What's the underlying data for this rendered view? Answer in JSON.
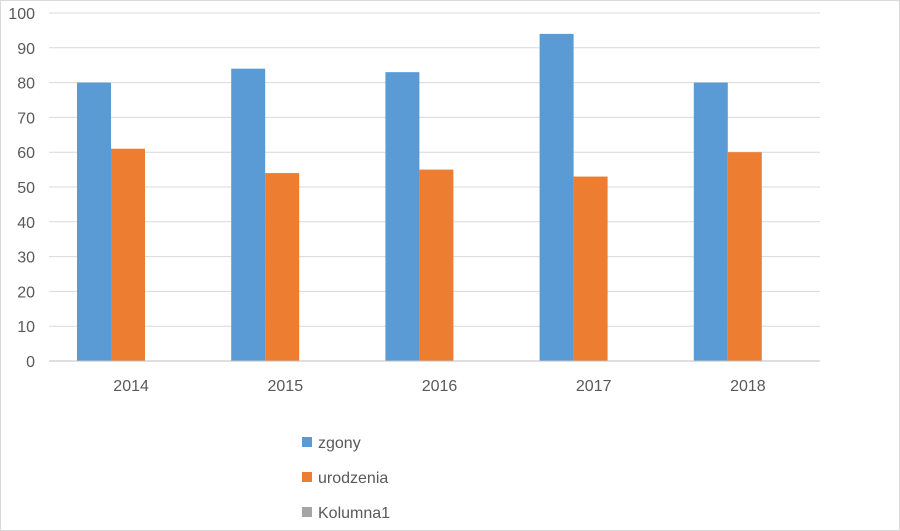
{
  "chart_data": {
    "type": "bar",
    "title": "",
    "xlabel": "",
    "ylabel": "",
    "categories": [
      "2014",
      "2015",
      "2016",
      "2017",
      "2018"
    ],
    "series": [
      {
        "name": "zgony",
        "color": "#5b9bd5",
        "values": [
          80,
          84,
          83,
          94,
          80
        ]
      },
      {
        "name": "urodzenia",
        "color": "#ed7d31",
        "values": [
          61,
          54,
          55,
          53,
          60
        ]
      },
      {
        "name": "Kolumna1",
        "color": "#a5a5a5",
        "values": [
          null,
          null,
          null,
          null,
          null
        ]
      }
    ],
    "ylim": [
      0,
      100
    ],
    "yticks": [
      0,
      10,
      20,
      30,
      40,
      50,
      60,
      70,
      80,
      90,
      100
    ],
    "grid": true,
    "legend_position": "bottom"
  }
}
